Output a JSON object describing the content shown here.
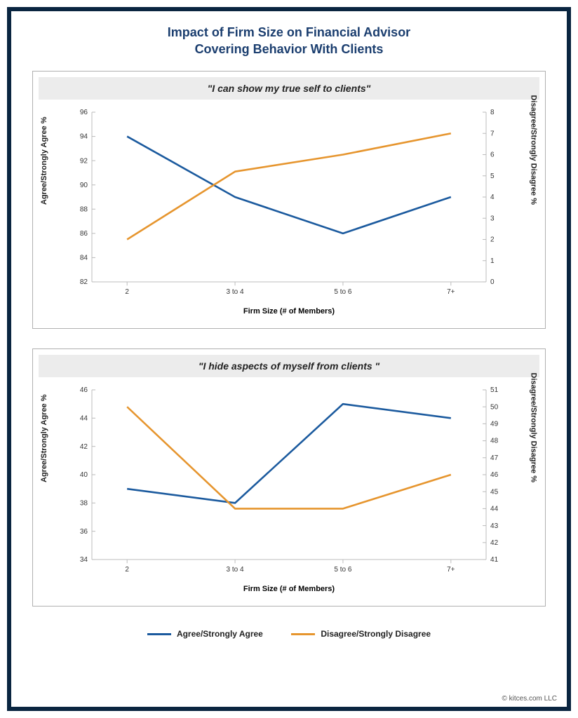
{
  "title_line1": "Impact of Firm Size on Financial Advisor",
  "title_line2": "Covering Behavior With Clients",
  "colors": {
    "agree": "#1b5a9e",
    "disagree": "#e6952e",
    "axis": "#bdbdbd",
    "border": "#b0b0b0",
    "title": "#1b3e6f",
    "subtitle_bg": "#ececec"
  },
  "line_width": 2.5,
  "label_fontsize": 11,
  "tick_fontsize": 10,
  "charts": [
    {
      "subtitle": "\"I can show my true self to clients\"",
      "x_categories": [
        "2",
        "3 to 4",
        "5 to 6",
        "7+"
      ],
      "x_label": "Firm Size (# of Members)",
      "y_left_label": "Agree/Strongly Agree %",
      "y_right_label": "Disagree/Strongly Disagree %",
      "y_left": {
        "min": 82,
        "max": 96,
        "step": 2
      },
      "y_right": {
        "min": 0,
        "max": 8,
        "step": 1
      },
      "series_agree": [
        94,
        89,
        86,
        89
      ],
      "series_disagree": [
        2,
        5.2,
        6,
        7
      ]
    },
    {
      "subtitle": "\"I hide aspects of myself from clients \"",
      "x_categories": [
        "2",
        "3 to 4",
        "5 to 6",
        "7+"
      ],
      "x_label": "Firm Size (# of Members)",
      "y_left_label": "Agree/Strongly Agree %",
      "y_right_label": "Disagree/Strongly Disagree %",
      "y_left": {
        "min": 34,
        "max": 46,
        "step": 2
      },
      "y_right": {
        "min": 41,
        "max": 51,
        "step": 1
      },
      "series_agree": [
        39,
        38,
        45,
        44
      ],
      "series_disagree": [
        50,
        44,
        44,
        46
      ]
    }
  ],
  "legend": {
    "agree": "Agree/Strongly Agree",
    "disagree": "Disagree/Strongly Disagree"
  },
  "copyright": "© kitces.com LLC"
}
